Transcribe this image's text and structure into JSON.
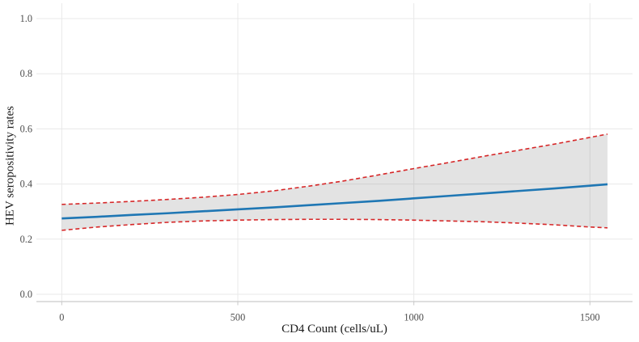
{
  "chart_data": {
    "type": "line",
    "title": "",
    "xlabel": "CD4 Count (cells/uL)",
    "ylabel": "HEV seropositivity rates",
    "xlim": [
      -72,
      1621
    ],
    "ylim": [
      -0.0264,
      1.0557
    ],
    "x_ticks": [
      0,
      500,
      1000,
      1500
    ],
    "x_tick_labels": [
      "0",
      "500",
      "1000",
      "1500"
    ],
    "y_ticks": [
      0,
      0.2,
      0.4,
      0.6,
      0.8,
      1.0
    ],
    "y_tick_labels": [
      "0.0",
      "0.2",
      "0.4",
      "0.6",
      "0.8",
      "1.0"
    ],
    "grid": true,
    "legend_position": "none",
    "x": [
      0,
      100,
      200,
      300,
      400,
      500,
      600,
      700,
      800,
      900,
      1000,
      1100,
      1200,
      1300,
      1400,
      1500,
      1550
    ],
    "series": [
      {
        "name": "fitted-line",
        "style": "solid",
        "color": "#1f77b4",
        "width": 2.6,
        "values": [
          0.275,
          0.281,
          0.288,
          0.294,
          0.301,
          0.308,
          0.315,
          0.323,
          0.331,
          0.339,
          0.348,
          0.357,
          0.366,
          0.375,
          0.384,
          0.394,
          0.399
        ]
      },
      {
        "name": "upper-ci",
        "style": "dashed",
        "color": "#d62728",
        "width": 1.6,
        "values": [
          0.326,
          0.331,
          0.337,
          0.344,
          0.352,
          0.362,
          0.375,
          0.392,
          0.411,
          0.433,
          0.456,
          0.478,
          0.501,
          0.523,
          0.545,
          0.569,
          0.581
        ]
      },
      {
        "name": "lower-ci",
        "style": "dashed",
        "color": "#d62728",
        "width": 1.6,
        "values": [
          0.232,
          0.244,
          0.253,
          0.261,
          0.266,
          0.269,
          0.271,
          0.272,
          0.272,
          0.271,
          0.269,
          0.266,
          0.263,
          0.258,
          0.252,
          0.244,
          0.241
        ]
      }
    ],
    "band": {
      "between": [
        "upper-ci",
        "lower-ci"
      ],
      "fill": "rgba(128,128,128,0.22)"
    },
    "colors": {
      "grid": "#e8e8e8",
      "axis_line": "#c9c9c9",
      "tick_label": "#4d4d4d",
      "axis_title": "#1a1a1a",
      "background": "#ffffff"
    }
  }
}
